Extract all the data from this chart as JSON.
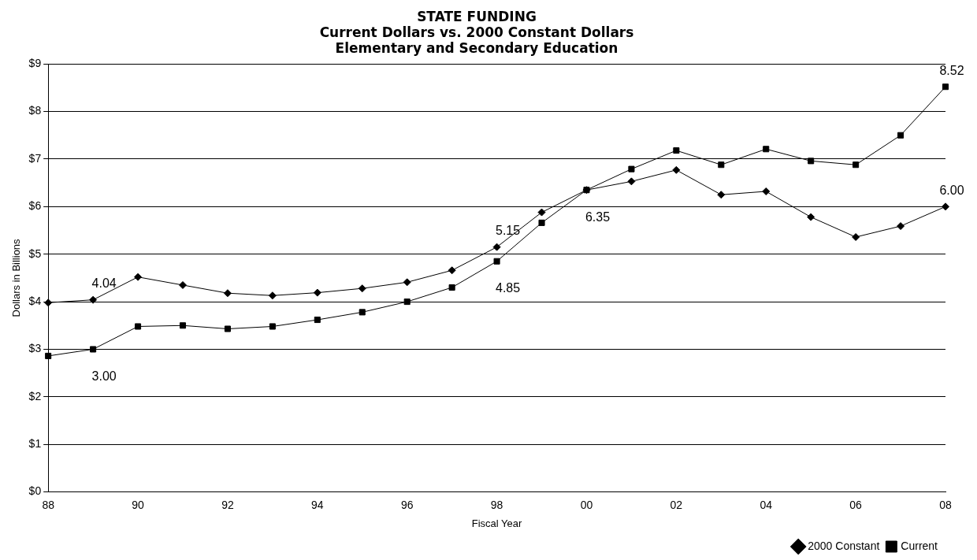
{
  "chart_data": {
    "type": "line",
    "title": "STATE FUNDING\nCurrent Dollars vs. 2000 Constant Dollars\nElementary and Secondary Education",
    "xlabel": "Fiscal Year",
    "ylabel": "Dollars in Billions",
    "categories": [
      "88",
      null,
      "90",
      null,
      "92",
      null,
      "94",
      null,
      "96",
      null,
      "98",
      null,
      "00",
      null,
      "02",
      null,
      "04",
      null,
      "06",
      null,
      "08"
    ],
    "series": [
      {
        "name": "Current",
        "color": "#000000",
        "marker": "square",
        "values": [
          2.86,
          3.0,
          3.48,
          3.5,
          3.43,
          3.48,
          3.62,
          3.78,
          4.0,
          4.3,
          4.85,
          5.66,
          6.35,
          6.79,
          7.18,
          6.88,
          7.21,
          6.96,
          6.88,
          7.5,
          8.52
        ],
        "value_labels": [
          null,
          "3.00",
          null,
          null,
          null,
          null,
          null,
          null,
          null,
          null,
          "4.85",
          null,
          "6.35",
          null,
          null,
          null,
          null,
          null,
          null,
          null,
          "8.52"
        ]
      },
      {
        "name": "2000 Constant",
        "color": "#000000",
        "marker": "diamond",
        "values": [
          3.98,
          4.04,
          4.52,
          4.35,
          4.18,
          4.13,
          4.19,
          4.28,
          4.41,
          4.66,
          5.15,
          5.88,
          6.35,
          6.53,
          6.77,
          6.25,
          6.32,
          5.78,
          5.36,
          5.59,
          6.0
        ],
        "value_labels": [
          null,
          "4.04",
          null,
          null,
          null,
          null,
          null,
          null,
          null,
          null,
          "5.15",
          null,
          null,
          null,
          null,
          null,
          null,
          null,
          null,
          null,
          "6.00"
        ]
      }
    ],
    "ylim": [
      0,
      9
    ],
    "yticks": [
      {
        "value": 0,
        "label": "$0"
      },
      {
        "value": 1,
        "label": "$1"
      },
      {
        "value": 2,
        "label": "$2"
      },
      {
        "value": 3,
        "label": "$3"
      },
      {
        "value": 4,
        "label": "$4"
      },
      {
        "value": 5,
        "label": "$5"
      },
      {
        "value": 6,
        "label": "$6"
      },
      {
        "value": 7,
        "label": "$7"
      },
      {
        "value": 8,
        "label": "$8"
      },
      {
        "value": 9,
        "label": "$9"
      }
    ],
    "grid": "y",
    "legend": "bottom right",
    "line_style": "solid"
  }
}
